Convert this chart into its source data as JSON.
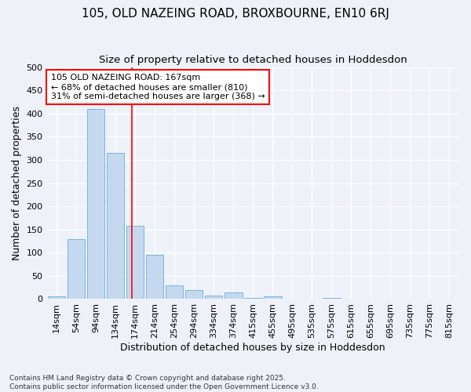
{
  "title": "105, OLD NAZEING ROAD, BROXBOURNE, EN10 6RJ",
  "subtitle": "Size of property relative to detached houses in Hoddesdon",
  "xlabel": "Distribution of detached houses by size in Hoddesdon",
  "ylabel": "Number of detached properties",
  "bins": [
    "14sqm",
    "54sqm",
    "94sqm",
    "134sqm",
    "174sqm",
    "214sqm",
    "254sqm",
    "294sqm",
    "334sqm",
    "374sqm",
    "415sqm",
    "455sqm",
    "495sqm",
    "535sqm",
    "575sqm",
    "615sqm",
    "655sqm",
    "695sqm",
    "735sqm",
    "775sqm",
    "815sqm"
  ],
  "values": [
    5,
    130,
    410,
    315,
    158,
    95,
    30,
    20,
    8,
    14,
    3,
    5,
    0,
    0,
    2,
    0,
    0,
    0,
    0,
    0,
    1
  ],
  "bar_color": "#c5d8f0",
  "bar_edge_color": "#6baed6",
  "annotation_text": "105 OLD NAZEING ROAD: 167sqm\n← 68% of detached houses are smaller (810)\n31% of semi-detached houses are larger (368) →",
  "annotation_box_color": "white",
  "annotation_box_edge_color": "red",
  "red_line_color": "red",
  "title_fontsize": 11,
  "subtitle_fontsize": 9.5,
  "axis_label_fontsize": 9,
  "tick_fontsize": 8,
  "annot_fontsize": 8,
  "footer_text": "Contains HM Land Registry data © Crown copyright and database right 2025.\nContains public sector information licensed under the Open Government Licence v3.0.",
  "ylim": [
    0,
    500
  ],
  "yticks": [
    0,
    50,
    100,
    150,
    200,
    250,
    300,
    350,
    400,
    450,
    500
  ],
  "background_color": "#eef2f8",
  "grid_color": "white",
  "red_line_x": 3.85
}
